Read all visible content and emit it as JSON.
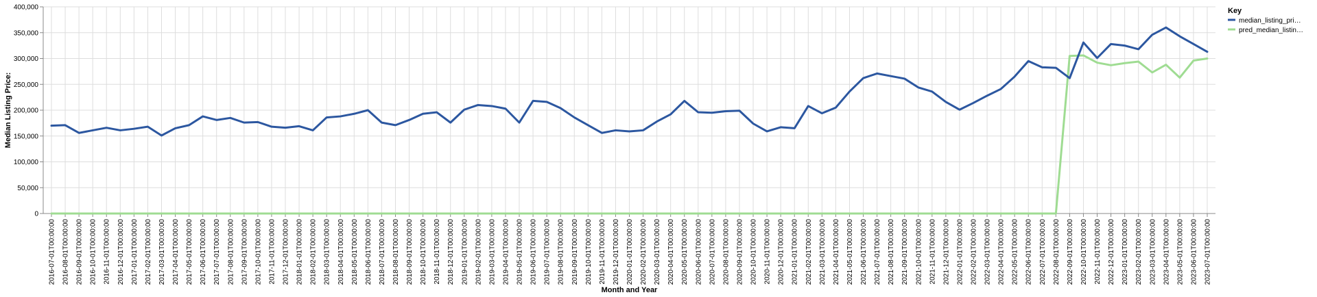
{
  "chart_data": {
    "type": "line",
    "xlabel": "Month and Year",
    "ylabel": "Median Listing Price:",
    "ylim": [
      0,
      400000
    ],
    "y_ticks": [
      "0",
      "50,000",
      "100,000",
      "150,000",
      "200,000",
      "250,000",
      "300,000",
      "350,000",
      "400,000"
    ],
    "grid": true,
    "legend": {
      "title": "Key",
      "placement": "right",
      "labels": [
        "median_listing_pri…",
        "pred_median_listin…"
      ]
    },
    "x": [
      "2016-07-01T00:00:00",
      "2016-08-01T00:00:00",
      "2016-09-01T00:00:00",
      "2016-10-01T00:00:00",
      "2016-11-01T00:00:00",
      "2016-12-01T00:00:00",
      "2017-01-01T00:00:00",
      "2017-02-01T00:00:00",
      "2017-03-01T00:00:00",
      "2017-04-01T00:00:00",
      "2017-05-01T00:00:00",
      "2017-06-01T00:00:00",
      "2017-07-01T00:00:00",
      "2017-08-01T00:00:00",
      "2017-09-01T00:00:00",
      "2017-10-01T00:00:00",
      "2017-11-01T00:00:00",
      "2017-12-01T00:00:00",
      "2018-01-01T00:00:00",
      "2018-02-01T00:00:00",
      "2018-03-01T00:00:00",
      "2018-04-01T00:00:00",
      "2018-05-01T00:00:00",
      "2018-06-01T00:00:00",
      "2018-07-01T00:00:00",
      "2018-08-01T00:00:00",
      "2018-09-01T00:00:00",
      "2018-10-01T00:00:00",
      "2018-11-01T00:00:00",
      "2018-12-01T00:00:00",
      "2019-01-01T00:00:00",
      "2019-02-01T00:00:00",
      "2019-03-01T00:00:00",
      "2019-04-01T00:00:00",
      "2019-05-01T00:00:00",
      "2019-06-01T00:00:00",
      "2019-07-01T00:00:00",
      "2019-08-01T00:00:00",
      "2019-09-01T00:00:00",
      "2019-10-01T00:00:00",
      "2019-11-01T00:00:00",
      "2019-12-01T00:00:00",
      "2020-01-01T00:00:00",
      "2020-02-01T00:00:00",
      "2020-03-01T00:00:00",
      "2020-04-01T00:00:00",
      "2020-05-01T00:00:00",
      "2020-06-01T00:00:00",
      "2020-07-01T00:00:00",
      "2020-08-01T00:00:00",
      "2020-09-01T00:00:00",
      "2020-10-01T00:00:00",
      "2020-11-01T00:00:00",
      "2020-12-01T00:00:00",
      "2021-01-01T00:00:00",
      "2021-02-01T00:00:00",
      "2021-03-01T00:00:00",
      "2021-04-01T00:00:00",
      "2021-05-01T00:00:00",
      "2021-06-01T00:00:00",
      "2021-07-01T00:00:00",
      "2021-08-01T00:00:00",
      "2021-09-01T00:00:00",
      "2021-10-01T00:00:00",
      "2021-11-01T00:00:00",
      "2021-12-01T00:00:00",
      "2022-01-01T00:00:00",
      "2022-02-01T00:00:00",
      "2022-03-01T00:00:00",
      "2022-04-01T00:00:00",
      "2022-05-01T00:00:00",
      "2022-06-01T00:00:00",
      "2022-07-01T00:00:00",
      "2022-08-01T00:00:00",
      "2022-09-01T00:00:00",
      "2022-10-01T00:00:00",
      "2022-11-01T00:00:00",
      "2022-12-01T00:00:00",
      "2023-01-01T00:00:00",
      "2023-02-01T00:00:00",
      "2023-03-01T00:00:00",
      "2023-04-01T00:00:00",
      "2023-05-01T00:00:00",
      "2023-06-01T00:00:00",
      "2023-07-01T00:00:00"
    ],
    "series": [
      {
        "name": "median_listing_price",
        "color": "#2c57a0",
        "values": [
          170000,
          171000,
          156000,
          161000,
          166000,
          161000,
          164000,
          168000,
          151000,
          165000,
          171000,
          188000,
          181000,
          185000,
          176000,
          177000,
          168000,
          166000,
          169000,
          161000,
          186000,
          188000,
          193000,
          200000,
          176000,
          171000,
          181000,
          193000,
          196000,
          176000,
          201000,
          210000,
          208000,
          203000,
          176000,
          218000,
          216000,
          204000,
          186000,
          171000,
          156000,
          161000,
          159000,
          161000,
          178000,
          192000,
          218000,
          196000,
          195000,
          198000,
          199000,
          174000,
          159000,
          167000,
          165000,
          208000,
          194000,
          205000,
          236000,
          262000,
          271000,
          266000,
          261000,
          244000,
          236000,
          216000,
          201000,
          214000,
          228000,
          241000,
          265000,
          295000,
          283000,
          282000,
          262000,
          331000,
          301000,
          328000,
          325000,
          318000,
          346000,
          360000,
          343000,
          328000,
          313000
        ]
      },
      {
        "name": "pred_median_listing_price",
        "color": "#9fdc92",
        "values": [
          0,
          0,
          0,
          0,
          0,
          0,
          0,
          0,
          0,
          0,
          0,
          0,
          0,
          0,
          0,
          0,
          0,
          0,
          0,
          0,
          0,
          0,
          0,
          0,
          0,
          0,
          0,
          0,
          0,
          0,
          0,
          0,
          0,
          0,
          0,
          0,
          0,
          0,
          0,
          0,
          0,
          0,
          0,
          0,
          0,
          0,
          0,
          0,
          0,
          0,
          0,
          0,
          0,
          0,
          0,
          0,
          0,
          0,
          0,
          0,
          0,
          0,
          0,
          0,
          0,
          0,
          0,
          0,
          0,
          0,
          0,
          0,
          0,
          0,
          305000,
          306000,
          292000,
          287000,
          291000,
          294000,
          273000,
          288000,
          263000,
          296000,
          300000
        ]
      }
    ]
  }
}
